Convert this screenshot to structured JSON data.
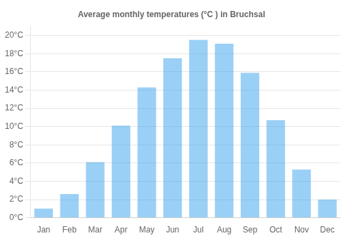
{
  "chart_data": {
    "type": "bar",
    "title": "Average monthly temperatures (°C ) in Bruchsal",
    "categories": [
      "Jan",
      "Feb",
      "Mar",
      "Apr",
      "May",
      "Jun",
      "Jul",
      "Aug",
      "Sep",
      "Oct",
      "Nov",
      "Dec"
    ],
    "values": [
      1.0,
      2.6,
      6.1,
      10.1,
      14.3,
      17.5,
      19.5,
      19.1,
      15.9,
      10.7,
      5.3,
      2.0
    ],
    "ylim": [
      0,
      21
    ],
    "yticks": [
      {
        "value": 0,
        "label": "0°C"
      },
      {
        "value": 2,
        "label": "2°C"
      },
      {
        "value": 4,
        "label": "4°C"
      },
      {
        "value": 6,
        "label": "6°C"
      },
      {
        "value": 8,
        "label": "8°C"
      },
      {
        "value": 10,
        "label": "10°C"
      },
      {
        "value": 12,
        "label": "12°C"
      },
      {
        "value": 14,
        "label": "14°C"
      },
      {
        "value": 16,
        "label": "16°C"
      },
      {
        "value": 18,
        "label": "18°C"
      },
      {
        "value": 20,
        "label": "20°C"
      }
    ],
    "grid": true
  }
}
